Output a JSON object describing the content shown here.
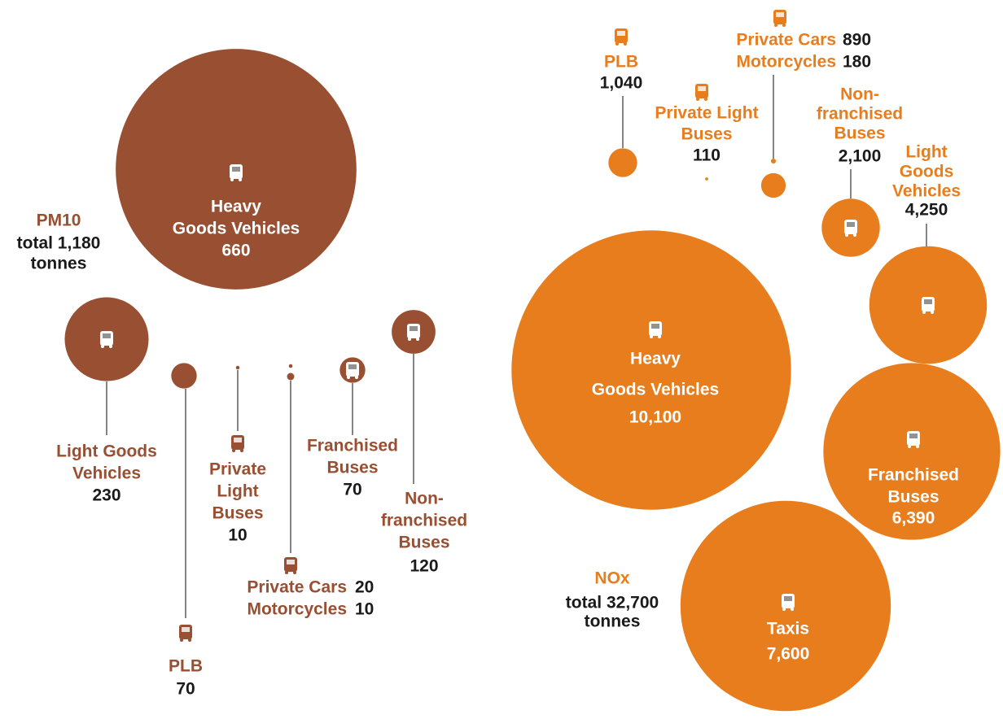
{
  "chart_data": [
    {
      "type": "bubble",
      "title": "PM10",
      "subtitle": [
        "total 1,180",
        "tonnes"
      ],
      "color": "#984f32",
      "categories": [
        [
          "Heavy",
          "Goods Vehicles"
        ],
        [
          "Light Goods",
          "Vehicles"
        ],
        [
          "PLB"
        ],
        [
          "Private",
          "Light",
          "Buses"
        ],
        [
          "Private Cars"
        ],
        [
          "Motorcycles"
        ],
        [
          "Franchised",
          "Buses"
        ],
        [
          "Non-",
          "franchised",
          "Buses"
        ]
      ],
      "values": [
        660,
        230,
        70,
        10,
        20,
        10,
        70,
        120
      ]
    },
    {
      "type": "bubble",
      "title": "NOx",
      "subtitle": [
        "total 32,700",
        "tonnes"
      ],
      "color": "#e87d1e",
      "categories": [
        [
          "Heavy",
          "Goods Vehicles"
        ],
        [
          "Taxis"
        ],
        [
          "Franchised",
          "Buses"
        ],
        [
          "Light",
          "Goods",
          "Vehicles"
        ],
        [
          "Non-",
          "franchised",
          "Buses"
        ],
        [
          "PLB"
        ],
        [
          "Private Cars"
        ],
        [
          "Motorcycles"
        ],
        [
          "Private Light",
          "Buses"
        ]
      ],
      "values": [
        10100,
        7600,
        6390,
        4250,
        2100,
        1040,
        890,
        180,
        110
      ],
      "value_labels": [
        "10,100",
        "7,600",
        "6,390",
        "4,250",
        "2,100",
        "1,040",
        "890",
        "180",
        "110"
      ]
    }
  ]
}
